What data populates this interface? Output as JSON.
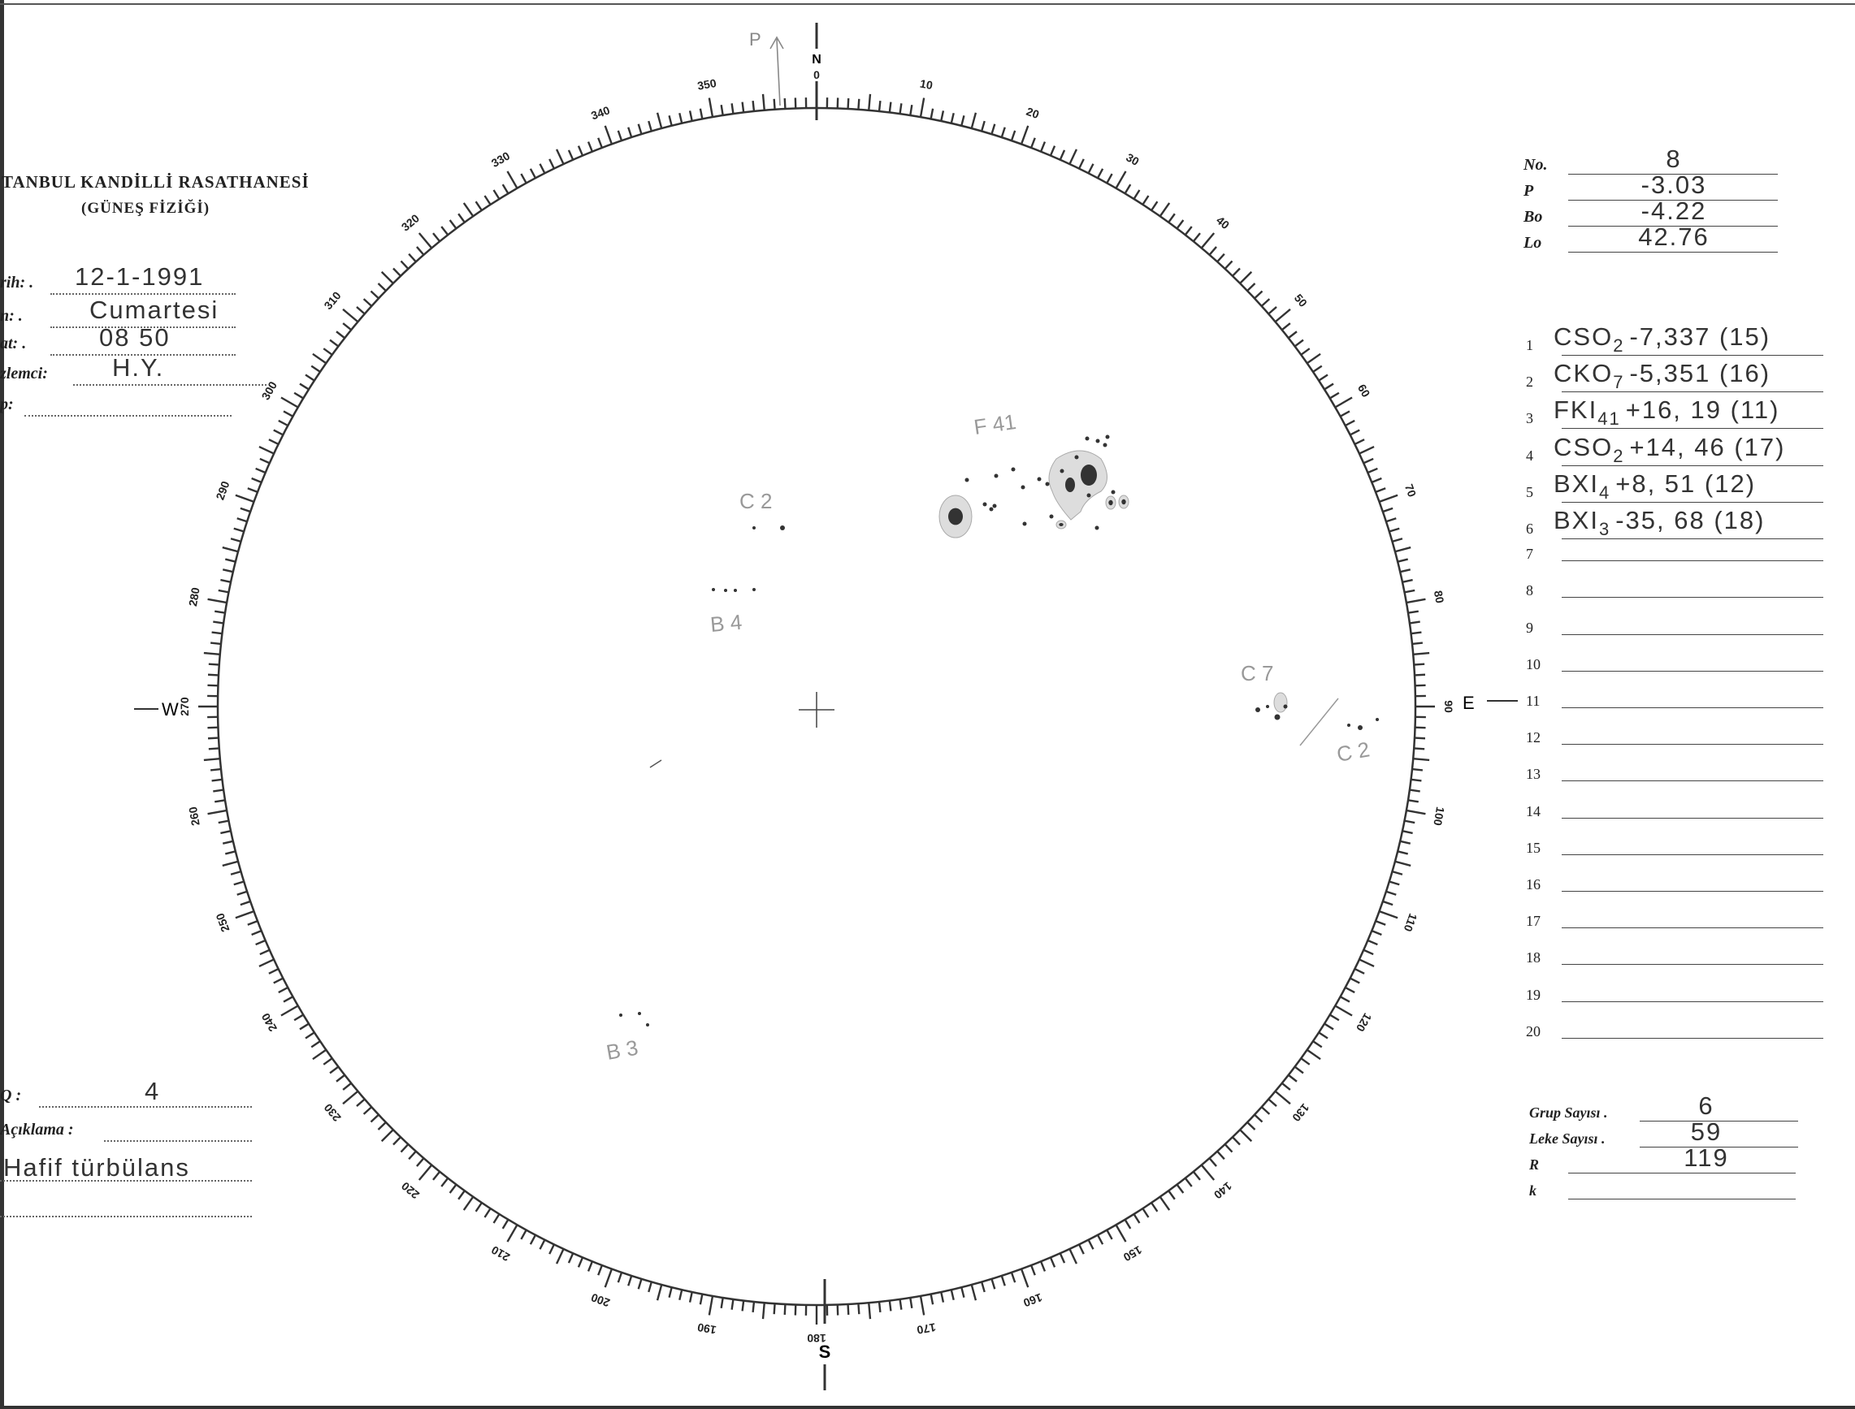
{
  "header": {
    "title": "TANBUL KANDİLLİ RASATHANESİ",
    "subtitle": "(GÜNEŞ FİZİĞİ)"
  },
  "left_fields": [
    {
      "label": "rih: .",
      "value": "12-1-1991"
    },
    {
      "label": "n: .",
      "value": "Cumartesi"
    },
    {
      "label": "at: .",
      "value": "08 50"
    },
    {
      "label": "zlemci:",
      "value": "H.Y."
    },
    {
      "label": "p:",
      "value": ""
    }
  ],
  "bottom_left": {
    "q_label": "Q :",
    "q_value": "4",
    "aciklama_label": "Açıklama :",
    "aciklama_value": "Hafif türbülans"
  },
  "top_right": [
    {
      "label": "No.",
      "value": "8"
    },
    {
      "label": "P",
      "value": "-3.03"
    },
    {
      "label": "Bo",
      "value": "-4.22"
    },
    {
      "label": "Lo",
      "value": "42.76"
    }
  ],
  "groups": [
    {
      "n": "1",
      "cls": "CSO",
      "sub": "2",
      "rest": "-7,337 (15)"
    },
    {
      "n": "2",
      "cls": "CKO",
      "sub": "7",
      "rest": "-5,351 (16)"
    },
    {
      "n": "3",
      "cls": "FKI",
      "sub": "41",
      "rest": "+16, 19 (11)"
    },
    {
      "n": "4",
      "cls": "CSO",
      "sub": "2",
      "rest": "+14, 46 (17)"
    },
    {
      "n": "5",
      "cls": "BXI",
      "sub": "4",
      "rest": "+8, 51 (12)"
    },
    {
      "n": "6",
      "cls": "BXI",
      "sub": "3",
      "rest": "-35, 68 (18)"
    },
    {
      "n": "7"
    },
    {
      "n": "8"
    },
    {
      "n": "9"
    },
    {
      "n": "10"
    },
    {
      "n": "11"
    },
    {
      "n": "12"
    },
    {
      "n": "13"
    },
    {
      "n": "14"
    },
    {
      "n": "15"
    },
    {
      "n": "16"
    },
    {
      "n": "17"
    },
    {
      "n": "18"
    },
    {
      "n": "19"
    },
    {
      "n": "20"
    }
  ],
  "summary": [
    {
      "label": "Grup Sayısı .",
      "value": "6"
    },
    {
      "label": "Leke Sayısı .",
      "value": "59"
    },
    {
      "label": "R",
      "value": "119"
    },
    {
      "label": "k",
      "value": ""
    }
  ],
  "disk": {
    "degree_labels": [
      "0",
      "10",
      "20",
      "30",
      "40",
      "50",
      "60",
      "70",
      "80",
      "90",
      "100",
      "110",
      "120",
      "130",
      "140",
      "150",
      "160",
      "170",
      "180",
      "190",
      "200",
      "210",
      "220",
      "230",
      "240",
      "250",
      "260",
      "270",
      "280",
      "290",
      "300",
      "310",
      "320",
      "330",
      "340",
      "350"
    ],
    "cardinals": {
      "north": "N",
      "south": "S",
      "east": "E",
      "west": "W",
      "p_axis": "P"
    },
    "spot_labels": {
      "f41": "F 41",
      "c2_a": "C 2",
      "b4": "B 4",
      "c7": "C 7",
      "c2_b": "C 2",
      "b3": "B 3"
    }
  }
}
